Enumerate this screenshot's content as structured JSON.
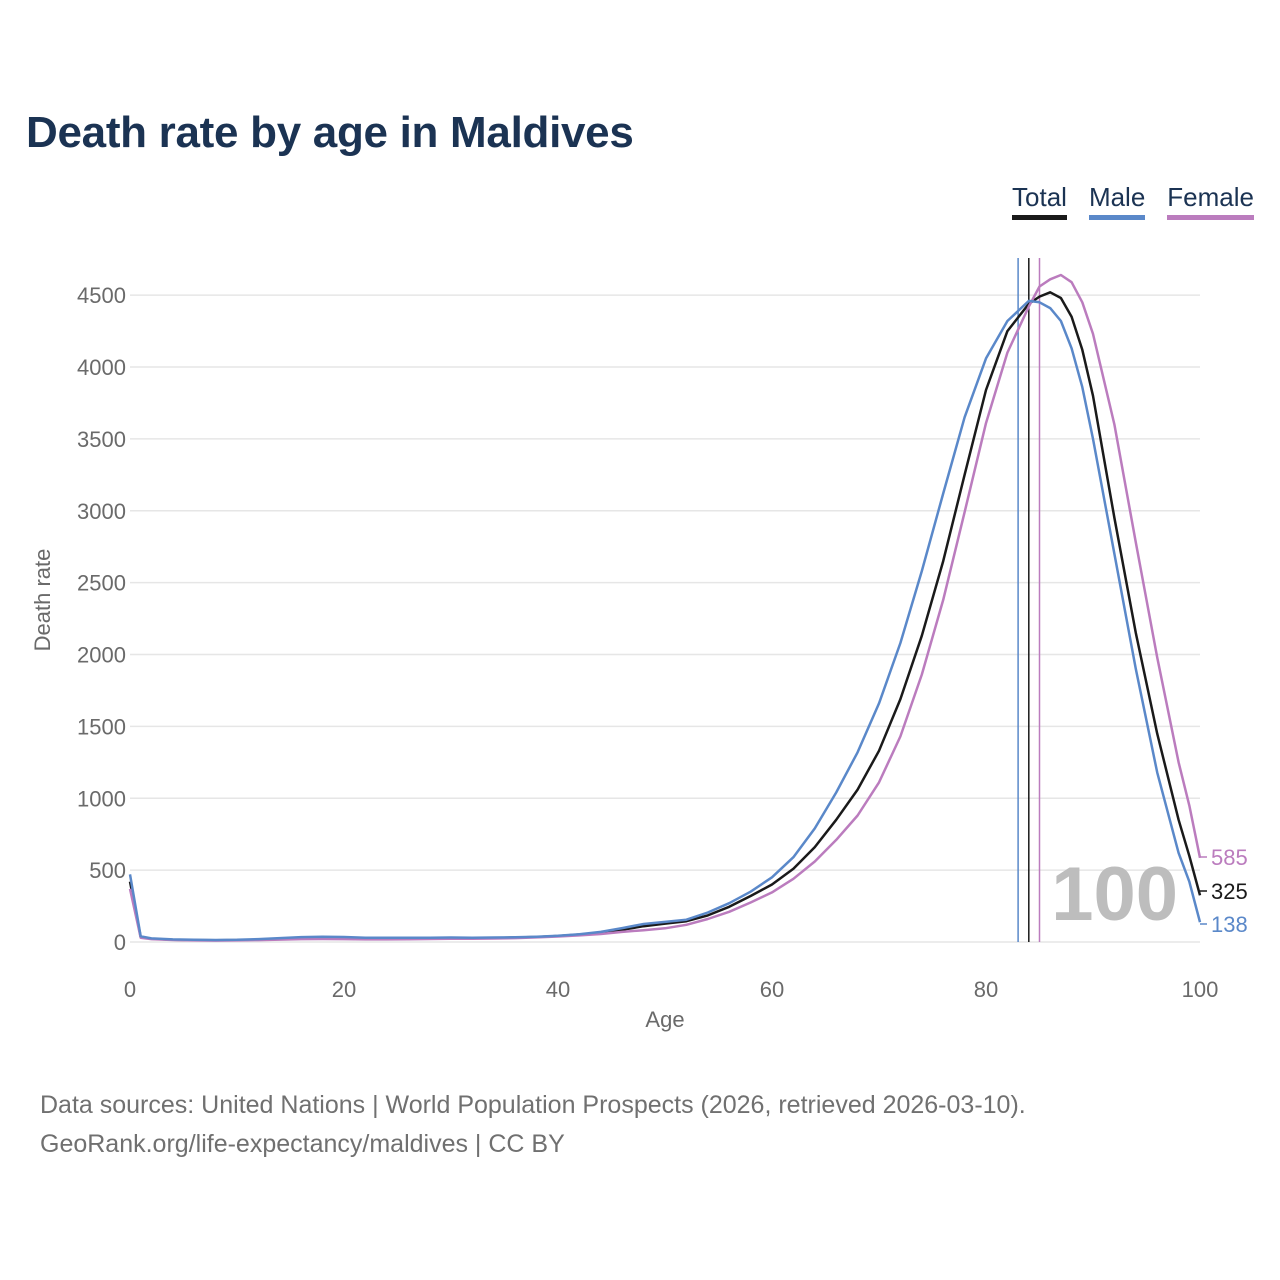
{
  "colors": {
    "total": "#1a1a1a",
    "male": "#5a88c9",
    "female": "#bb7cbe",
    "title": "#1b3353",
    "grid": "#e6e6e6"
  },
  "legend": {
    "total": "Total",
    "male": "Male",
    "female": "Female"
  },
  "watermark": "100",
  "source": {
    "line1": "Data sources: United Nations | World Population Prospects (2026, retrieved 2026-03-10).",
    "line2": "GeoRank.org/life-expectancy/maldives | CC BY"
  },
  "chart_data": {
    "type": "line",
    "title": "Death rate by age in Maldives",
    "xlabel": "Age",
    "ylabel": "Death rate",
    "xlim": [
      0,
      100
    ],
    "ylim": [
      0,
      4800
    ],
    "xticks": [
      0,
      20,
      40,
      60,
      80,
      100
    ],
    "yticks": [
      0,
      500,
      1000,
      1500,
      2000,
      2500,
      3000,
      3500,
      4000,
      4500
    ],
    "grid": true,
    "legend_position": "top-right",
    "series": [
      {
        "name": "Total",
        "key": "total",
        "end_label": "325",
        "marker_age": 84,
        "points": [
          [
            0,
            420
          ],
          [
            1,
            35
          ],
          [
            2,
            22
          ],
          [
            4,
            16
          ],
          [
            6,
            13
          ],
          [
            8,
            12
          ],
          [
            10,
            13
          ],
          [
            12,
            17
          ],
          [
            14,
            22
          ],
          [
            16,
            27
          ],
          [
            18,
            29
          ],
          [
            20,
            27
          ],
          [
            22,
            24
          ],
          [
            24,
            23
          ],
          [
            26,
            24
          ],
          [
            28,
            26
          ],
          [
            30,
            27
          ],
          [
            32,
            27
          ],
          [
            34,
            28
          ],
          [
            36,
            31
          ],
          [
            38,
            35
          ],
          [
            40,
            42
          ],
          [
            42,
            52
          ],
          [
            44,
            64
          ],
          [
            46,
            85
          ],
          [
            48,
            110
          ],
          [
            50,
            128
          ],
          [
            52,
            145
          ],
          [
            54,
            185
          ],
          [
            56,
            245
          ],
          [
            58,
            320
          ],
          [
            60,
            400
          ],
          [
            62,
            510
          ],
          [
            64,
            660
          ],
          [
            66,
            850
          ],
          [
            68,
            1060
          ],
          [
            70,
            1330
          ],
          [
            72,
            1690
          ],
          [
            74,
            2130
          ],
          [
            76,
            2650
          ],
          [
            78,
            3250
          ],
          [
            80,
            3840
          ],
          [
            82,
            4250
          ],
          [
            84,
            4440
          ],
          [
            85,
            4490
          ],
          [
            86,
            4520
          ],
          [
            87,
            4480
          ],
          [
            88,
            4350
          ],
          [
            89,
            4120
          ],
          [
            90,
            3800
          ],
          [
            92,
            2950
          ],
          [
            94,
            2150
          ],
          [
            96,
            1450
          ],
          [
            98,
            850
          ],
          [
            99,
            600
          ],
          [
            100,
            325
          ]
        ]
      },
      {
        "name": "Male",
        "key": "male",
        "end_label": "138",
        "marker_age": 83,
        "points": [
          [
            0,
            470
          ],
          [
            1,
            40
          ],
          [
            2,
            25
          ],
          [
            4,
            18
          ],
          [
            6,
            15
          ],
          [
            8,
            14
          ],
          [
            10,
            15
          ],
          [
            12,
            20
          ],
          [
            14,
            27
          ],
          [
            16,
            34
          ],
          [
            18,
            37
          ],
          [
            20,
            35
          ],
          [
            22,
            30
          ],
          [
            24,
            29
          ],
          [
            26,
            29
          ],
          [
            28,
            30
          ],
          [
            30,
            31
          ],
          [
            32,
            30
          ],
          [
            34,
            31
          ],
          [
            36,
            33
          ],
          [
            38,
            37
          ],
          [
            40,
            44
          ],
          [
            42,
            54
          ],
          [
            44,
            70
          ],
          [
            46,
            97
          ],
          [
            48,
            125
          ],
          [
            50,
            140
          ],
          [
            52,
            155
          ],
          [
            54,
            205
          ],
          [
            56,
            270
          ],
          [
            58,
            350
          ],
          [
            60,
            450
          ],
          [
            62,
            590
          ],
          [
            64,
            790
          ],
          [
            66,
            1040
          ],
          [
            68,
            1320
          ],
          [
            70,
            1660
          ],
          [
            72,
            2080
          ],
          [
            74,
            2580
          ],
          [
            76,
            3120
          ],
          [
            78,
            3650
          ],
          [
            80,
            4060
          ],
          [
            82,
            4320
          ],
          [
            84,
            4460
          ],
          [
            85,
            4450
          ],
          [
            86,
            4410
          ],
          [
            87,
            4320
          ],
          [
            88,
            4130
          ],
          [
            89,
            3860
          ],
          [
            90,
            3500
          ],
          [
            92,
            2700
          ],
          [
            94,
            1900
          ],
          [
            96,
            1180
          ],
          [
            98,
            620
          ],
          [
            99,
            420
          ],
          [
            100,
            138
          ]
        ]
      },
      {
        "name": "Female",
        "key": "female",
        "end_label": "585",
        "marker_age": 85,
        "points": [
          [
            0,
            370
          ],
          [
            1,
            30
          ],
          [
            2,
            20
          ],
          [
            4,
            14
          ],
          [
            6,
            11
          ],
          [
            8,
            10
          ],
          [
            10,
            11
          ],
          [
            12,
            13
          ],
          [
            14,
            17
          ],
          [
            16,
            20
          ],
          [
            18,
            21
          ],
          [
            20,
            20
          ],
          [
            22,
            18
          ],
          [
            24,
            18
          ],
          [
            26,
            19
          ],
          [
            28,
            21
          ],
          [
            30,
            22
          ],
          [
            32,
            23
          ],
          [
            34,
            24
          ],
          [
            36,
            27
          ],
          [
            38,
            32
          ],
          [
            40,
            38
          ],
          [
            42,
            46
          ],
          [
            44,
            56
          ],
          [
            46,
            70
          ],
          [
            48,
            82
          ],
          [
            50,
            95
          ],
          [
            52,
            120
          ],
          [
            54,
            160
          ],
          [
            56,
            210
          ],
          [
            58,
            275
          ],
          [
            60,
            345
          ],
          [
            62,
            440
          ],
          [
            64,
            560
          ],
          [
            66,
            710
          ],
          [
            68,
            880
          ],
          [
            70,
            1110
          ],
          [
            72,
            1430
          ],
          [
            74,
            1860
          ],
          [
            76,
            2380
          ],
          [
            78,
            2990
          ],
          [
            80,
            3610
          ],
          [
            82,
            4100
          ],
          [
            84,
            4420
          ],
          [
            85,
            4560
          ],
          [
            86,
            4610
          ],
          [
            87,
            4640
          ],
          [
            88,
            4590
          ],
          [
            89,
            4450
          ],
          [
            90,
            4230
          ],
          [
            92,
            3600
          ],
          [
            94,
            2780
          ],
          [
            96,
            1980
          ],
          [
            98,
            1250
          ],
          [
            99,
            950
          ],
          [
            100,
            585
          ]
        ]
      }
    ]
  }
}
